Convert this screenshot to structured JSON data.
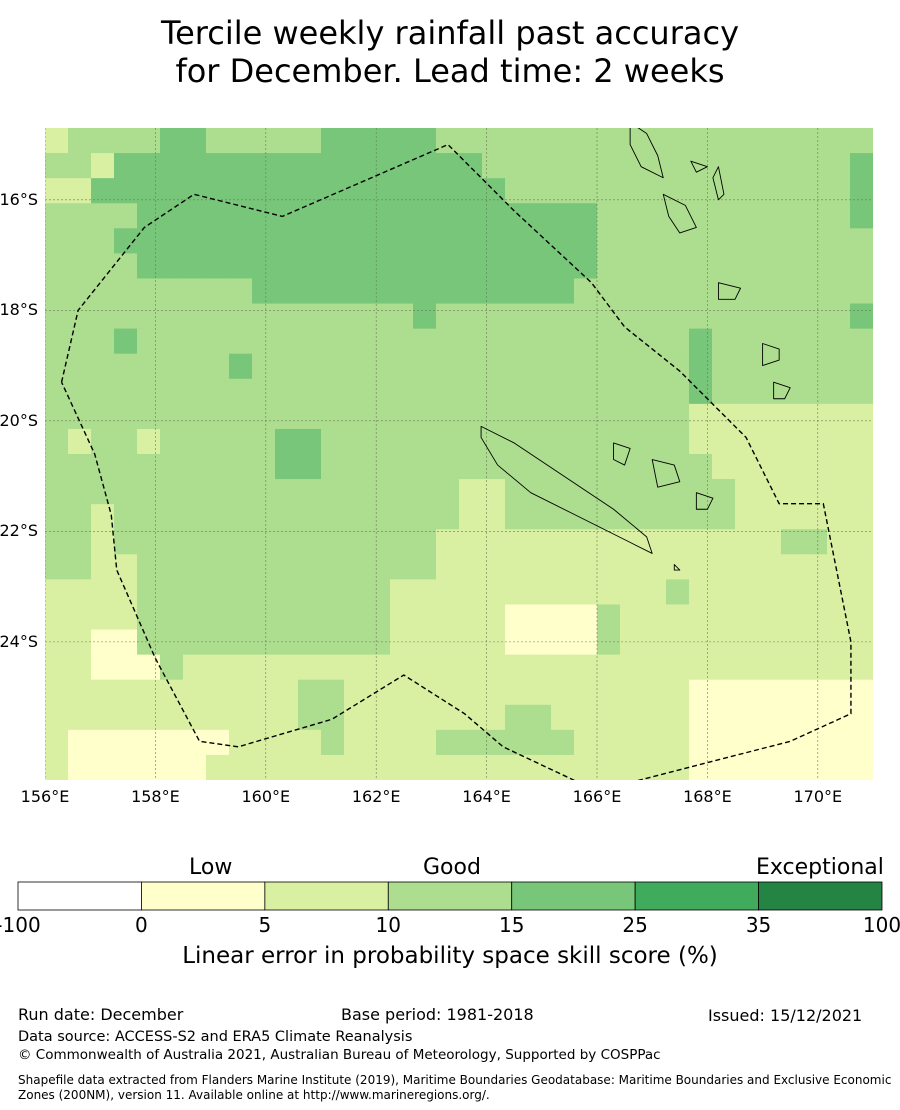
{
  "title": {
    "line1": "Tercile weekly rainfall past accuracy",
    "line2": "for December. Lead time: 2 weeks"
  },
  "map": {
    "lon_range": [
      156,
      171
    ],
    "lat_range": [
      -26.5,
      -14.7
    ],
    "lon_ticks": [
      "156°E",
      "158°E",
      "160°E",
      "162°E",
      "164°E",
      "166°E",
      "168°E",
      "170°E"
    ],
    "lat_ticks": [
      "16°S",
      "18°S",
      "20°S",
      "22°S",
      "24°S"
    ],
    "gridlines": true,
    "grid": {
      "cell_deg": 0.83,
      "legend_note": "score category index per cell, rows north to south: 0 = 0–5, 1 = 5–10, 2 = 10–15, 3 = 15–25",
      "rows": [
        "122223322222333332222222222222222222",
        "221333333333333333322222222222222223",
        "113333333333333333332222222222222223",
        "222233333333333333333333222222222223",
        "222333333333333333333333222222222222",
        "222233333333333333333333222222222222",
        "222222222333333333333332222222222222",
        "222222222222222232222222222222222223",
        "222322222222222222222222222232222222",
        "222222223222222222222222222232222222",
        "222222222222222222222222222232222222",
        "222222222222222222222222222211111111",
        "212212222233222222222222222211111111",
        "222222222233222222222222222221111111",
        "222222222222222222112222222222111111",
        "221222222222222222112222222222111111",
        "221222222222222221111111111111112211",
        "221122222222222221111111111111111111",
        "111122222222222111111111111211111111",
        "111122222222222111110000211111111111",
        "110022222222222111110000211111111111",
        "110002111111111111111111111111111111",
        "111111111112211111111111111100000000",
        "111111111112211111112211111100000000",
        "100000001111211112222221111100000000",
        "100000011111111111111111111100000000"
      ]
    },
    "boundary": [
      [
        156.3,
        -19.3
      ],
      [
        156.6,
        -18.0
      ],
      [
        157.8,
        -16.5
      ],
      [
        158.7,
        -15.9
      ],
      [
        160.3,
        -16.3
      ],
      [
        163.3,
        -15.0
      ],
      [
        164.5,
        -16.2
      ],
      [
        165.9,
        -17.5
      ],
      [
        166.5,
        -18.3
      ],
      [
        167.5,
        -19.1
      ],
      [
        168.7,
        -20.3
      ],
      [
        169.3,
        -21.5
      ],
      [
        170.1,
        -21.5
      ],
      [
        170.6,
        -24.0
      ],
      [
        170.6,
        -25.3
      ],
      [
        169.5,
        -25.8
      ],
      [
        166.0,
        -26.7
      ],
      [
        164.3,
        -25.9
      ],
      [
        163.6,
        -25.3
      ],
      [
        162.5,
        -24.6
      ],
      [
        161.2,
        -25.4
      ],
      [
        159.5,
        -25.9
      ],
      [
        158.8,
        -25.8
      ],
      [
        158.0,
        -24.3
      ],
      [
        157.3,
        -22.7
      ],
      [
        157.2,
        -21.7
      ],
      [
        156.9,
        -20.6
      ],
      [
        156.3,
        -19.3
      ]
    ],
    "islands": [
      {
        "name": "new-caledonia",
        "coords": [
          [
            163.9,
            -20.1
          ],
          [
            164.5,
            -20.4
          ],
          [
            165.4,
            -21.0
          ],
          [
            166.3,
            -21.6
          ],
          [
            166.9,
            -22.1
          ],
          [
            167.0,
            -22.4
          ],
          [
            166.6,
            -22.2
          ],
          [
            165.6,
            -21.7
          ],
          [
            164.8,
            -21.3
          ],
          [
            164.2,
            -20.8
          ],
          [
            163.9,
            -20.3
          ]
        ]
      },
      {
        "name": "espiritu-santo",
        "coords": [
          [
            166.6,
            -14.6
          ],
          [
            166.9,
            -14.8
          ],
          [
            167.1,
            -15.2
          ],
          [
            167.2,
            -15.6
          ],
          [
            166.8,
            -15.4
          ],
          [
            166.6,
            -15.0
          ]
        ]
      },
      {
        "name": "malekula",
        "coords": [
          [
            167.2,
            -15.9
          ],
          [
            167.6,
            -16.1
          ],
          [
            167.8,
            -16.5
          ],
          [
            167.5,
            -16.6
          ],
          [
            167.3,
            -16.3
          ]
        ]
      },
      {
        "name": "efate",
        "coords": [
          [
            168.2,
            -17.5
          ],
          [
            168.6,
            -17.6
          ],
          [
            168.5,
            -17.8
          ],
          [
            168.2,
            -17.8
          ]
        ]
      },
      {
        "name": "erromango",
        "coords": [
          [
            169.0,
            -18.6
          ],
          [
            169.3,
            -18.7
          ],
          [
            169.3,
            -18.9
          ],
          [
            169.0,
            -19.0
          ]
        ]
      },
      {
        "name": "tanna",
        "coords": [
          [
            169.2,
            -19.3
          ],
          [
            169.5,
            -19.4
          ],
          [
            169.4,
            -19.6
          ],
          [
            169.2,
            -19.6
          ]
        ]
      },
      {
        "name": "lifou",
        "coords": [
          [
            167.0,
            -20.7
          ],
          [
            167.4,
            -20.8
          ],
          [
            167.5,
            -21.1
          ],
          [
            167.1,
            -21.2
          ]
        ]
      },
      {
        "name": "mare",
        "coords": [
          [
            167.8,
            -21.3
          ],
          [
            168.1,
            -21.4
          ],
          [
            168.0,
            -21.6
          ],
          [
            167.8,
            -21.6
          ]
        ]
      },
      {
        "name": "ouvea",
        "coords": [
          [
            166.3,
            -20.4
          ],
          [
            166.6,
            -20.5
          ],
          [
            166.5,
            -20.8
          ],
          [
            166.3,
            -20.7
          ]
        ]
      },
      {
        "name": "pentecost",
        "coords": [
          [
            168.2,
            -15.4
          ],
          [
            168.3,
            -15.9
          ],
          [
            168.2,
            -16.0
          ],
          [
            168.1,
            -15.6
          ]
        ]
      },
      {
        "name": "ambae",
        "coords": [
          [
            167.7,
            -15.3
          ],
          [
            168.0,
            -15.4
          ],
          [
            167.8,
            -15.5
          ]
        ]
      },
      {
        "name": "isle-of-pines",
        "coords": [
          [
            167.4,
            -22.6
          ],
          [
            167.5,
            -22.7
          ],
          [
            167.4,
            -22.7
          ]
        ]
      }
    ]
  },
  "colorbar": {
    "colors": [
      "#ffffff",
      "#ffffcc",
      "#d9f0a3",
      "#addd8e",
      "#78c679",
      "#41ab5d",
      "#238443"
    ],
    "ticks": [
      "-100",
      "0",
      "5",
      "10",
      "15",
      "25",
      "35",
      "100"
    ],
    "categories": [
      "Low",
      "Good",
      "Exceptional"
    ],
    "label": "Linear error in probability space skill score (%)"
  },
  "footer": {
    "run_date": "Run date: December",
    "base_period": "Base period: 1981-2018",
    "issued": "Issued: 15/12/2021",
    "data_source": "Data source: ACCESS-S2 and ERA5 Climate Reanalysis",
    "copyright": "© Commonwealth of Australia 2021, Australian Bureau of Meteorology, Supported by COSPPac",
    "shapefile": "Shapefile data extracted from Flanders Marine Institute (2019), Maritime Boundaries Geodatabase: Maritime Boundaries and Exclusive Economic Zones (200NM), version 11. Available online at http://www.marineregions.org/."
  }
}
